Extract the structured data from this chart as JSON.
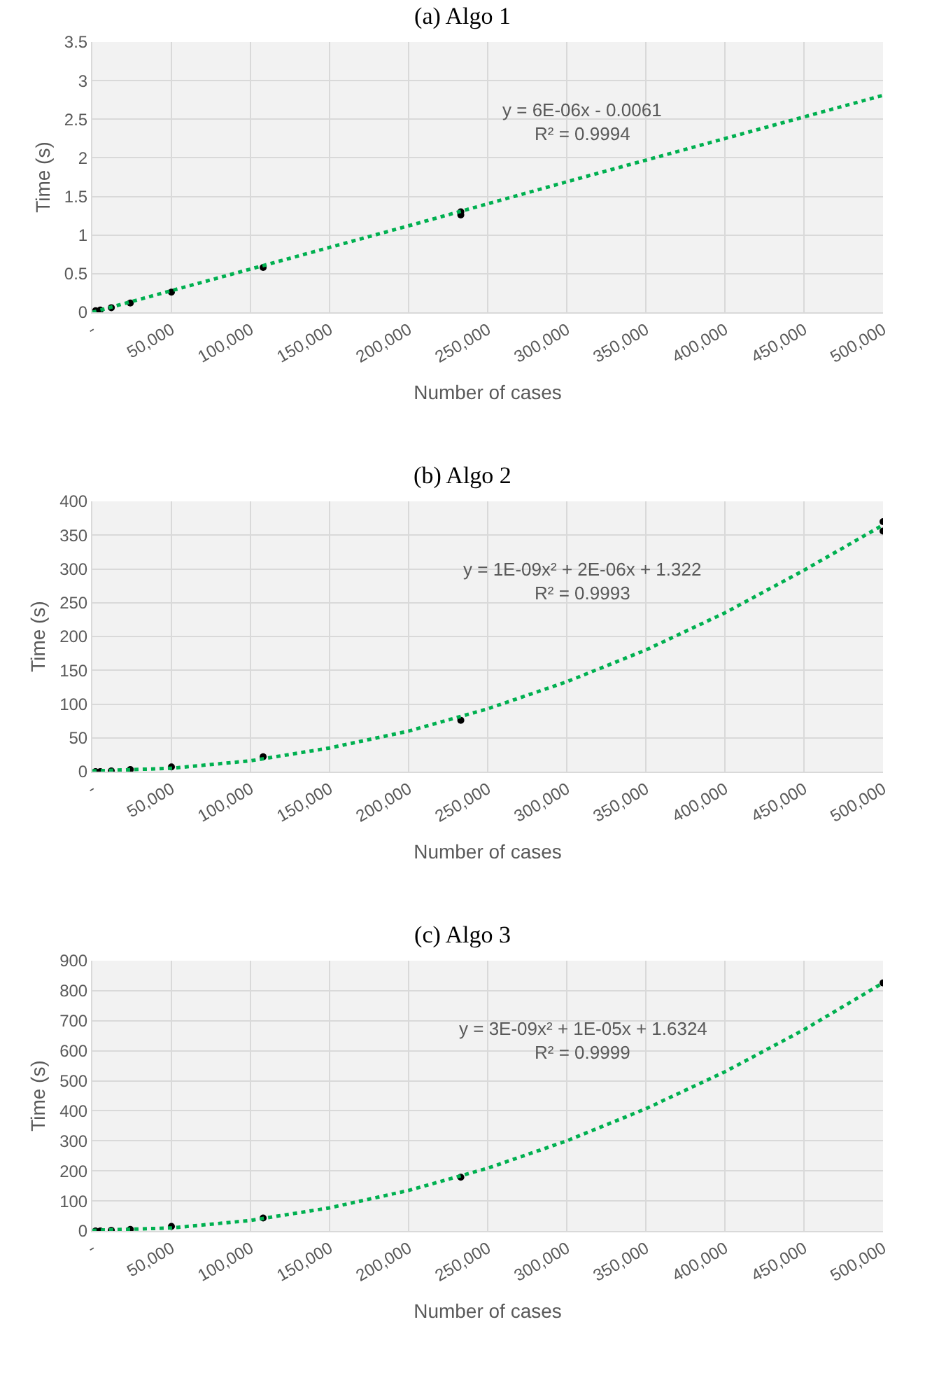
{
  "chart_data": [
    {
      "type": "scatter",
      "title": "(a) Algo 1",
      "xlabel": "Number of cases",
      "ylabel": "Time (s)",
      "annotations": [
        "y = 6E-06x - 0.0061",
        "R² = 0.9994"
      ],
      "xlim": [
        0,
        500000
      ],
      "xticks": [
        {
          "value": 0,
          "label": "-"
        },
        {
          "value": 50000,
          "label": "50,000"
        },
        {
          "value": 100000,
          "label": "100,000"
        },
        {
          "value": 150000,
          "label": "150,000"
        },
        {
          "value": 200000,
          "label": "200,000"
        },
        {
          "value": 250000,
          "label": "250,000"
        },
        {
          "value": 300000,
          "label": "300,000"
        },
        {
          "value": 350000,
          "label": "350,000"
        },
        {
          "value": 400000,
          "label": "400,000"
        },
        {
          "value": 450000,
          "label": "450,000"
        },
        {
          "value": 500000,
          "label": "500,000"
        }
      ],
      "ylim": [
        0,
        3.5
      ],
      "yticks": [
        0,
        0.5,
        1,
        1.5,
        2,
        2.5,
        3,
        3.5
      ],
      "grid": true,
      "series": [
        {
          "marker": "circle",
          "color": "#000000",
          "x": [
            2000,
            5000,
            12000,
            24000,
            50000,
            108000,
            233000,
            233000
          ],
          "values": [
            0.02,
            0.03,
            0.06,
            0.12,
            0.26,
            0.58,
            1.26,
            1.3
          ]
        },
        {
          "type": "line",
          "marker": "none",
          "line_style": "dotted",
          "color": "#00b050",
          "x": [
            0,
            100000,
            200000,
            300000,
            400000,
            500000
          ],
          "values": [
            0,
            0.56,
            1.12,
            1.69,
            2.25,
            2.81
          ]
        }
      ]
    },
    {
      "type": "scatter",
      "title": "(b) Algo 2",
      "xlabel": "Number of cases",
      "ylabel": "Time (s)",
      "annotations": [
        "y = 1E-09x² + 2E-06x + 1.322",
        "R² = 0.9993"
      ],
      "xlim": [
        0,
        500000
      ],
      "xticks": [
        {
          "value": 0,
          "label": "-"
        },
        {
          "value": 50000,
          "label": "50,000"
        },
        {
          "value": 100000,
          "label": "100,000"
        },
        {
          "value": 150000,
          "label": "150,000"
        },
        {
          "value": 200000,
          "label": "200,000"
        },
        {
          "value": 250000,
          "label": "250,000"
        },
        {
          "value": 300000,
          "label": "300,000"
        },
        {
          "value": 350000,
          "label": "350,000"
        },
        {
          "value": 400000,
          "label": "400,000"
        },
        {
          "value": 450000,
          "label": "450,000"
        },
        {
          "value": 500000,
          "label": "500,000"
        }
      ],
      "ylim": [
        0,
        400
      ],
      "yticks": [
        0,
        50,
        100,
        150,
        200,
        250,
        300,
        350,
        400
      ],
      "grid": true,
      "series": [
        {
          "marker": "circle",
          "color": "#000000",
          "x": [
            2000,
            5000,
            12000,
            24000,
            50000,
            108000,
            233000,
            500000,
            500000
          ],
          "values": [
            0,
            0,
            1,
            3,
            7,
            22,
            76,
            356,
            370
          ]
        },
        {
          "type": "line",
          "marker": "none",
          "line_style": "dotted",
          "color": "#00b050",
          "x": [
            0,
            50000,
            100000,
            150000,
            200000,
            250000,
            300000,
            350000,
            400000,
            450000,
            500000
          ],
          "values": [
            1,
            5,
            16,
            35,
            60,
            93,
            133,
            180,
            235,
            298,
            365
          ]
        }
      ]
    },
    {
      "type": "scatter",
      "title": "(c) Algo 3",
      "xlabel": "Number of cases",
      "ylabel": "Time (s)",
      "annotations": [
        "y = 3E-09x² + 1E-05x + 1.6324",
        "R² = 0.9999"
      ],
      "xlim": [
        0,
        500000
      ],
      "xticks": [
        {
          "value": 0,
          "label": "-"
        },
        {
          "value": 50000,
          "label": "50,000"
        },
        {
          "value": 100000,
          "label": "100,000"
        },
        {
          "value": 150000,
          "label": "150,000"
        },
        {
          "value": 200000,
          "label": "200,000"
        },
        {
          "value": 250000,
          "label": "250,000"
        },
        {
          "value": 300000,
          "label": "300,000"
        },
        {
          "value": 350000,
          "label": "350,000"
        },
        {
          "value": 400000,
          "label": "400,000"
        },
        {
          "value": 450000,
          "label": "450,000"
        },
        {
          "value": 500000,
          "label": "500,000"
        }
      ],
      "ylim": [
        0,
        900
      ],
      "yticks": [
        0,
        100,
        200,
        300,
        400,
        500,
        600,
        700,
        800,
        900
      ],
      "grid": true,
      "series": [
        {
          "marker": "circle",
          "color": "#000000",
          "x": [
            2000,
            5000,
            12000,
            24000,
            50000,
            108000,
            233000,
            500000
          ],
          "values": [
            0,
            0,
            2,
            5,
            15,
            43,
            179,
            826
          ]
        },
        {
          "type": "line",
          "marker": "none",
          "line_style": "dotted",
          "color": "#00b050",
          "x": [
            0,
            50000,
            100000,
            150000,
            200000,
            250000,
            300000,
            350000,
            400000,
            450000,
            500000
          ],
          "values": [
            2,
            10,
            35,
            77,
            135,
            209,
            300,
            407,
            530,
            670,
            826
          ]
        }
      ]
    }
  ]
}
